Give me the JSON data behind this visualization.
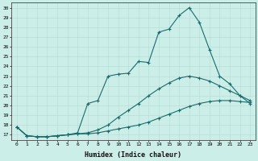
{
  "xlabel": "Humidex (Indice chaleur)",
  "bg_color": "#cceee8",
  "line_color": "#1a6b6b",
  "grid_color": "#b8ddd8",
  "xlim": [
    -0.5,
    23.5
  ],
  "ylim": [
    16.5,
    30.5
  ],
  "xticks": [
    0,
    1,
    2,
    3,
    4,
    5,
    6,
    7,
    8,
    9,
    10,
    11,
    12,
    13,
    14,
    15,
    16,
    17,
    18,
    19,
    20,
    21,
    22,
    23
  ],
  "yticks": [
    17,
    18,
    19,
    20,
    21,
    22,
    23,
    24,
    25,
    26,
    27,
    28,
    29,
    30
  ],
  "series": [
    [
      17.8,
      16.9,
      16.8,
      16.8,
      16.9,
      17.0,
      17.1,
      17.1,
      17.2,
      17.4,
      17.6,
      17.8,
      18.0,
      18.3,
      18.7,
      19.1,
      19.5,
      19.9,
      20.2,
      20.4,
      20.5,
      20.5,
      20.4,
      20.3
    ],
    [
      17.8,
      16.9,
      16.8,
      16.8,
      16.9,
      17.0,
      17.1,
      17.2,
      17.5,
      18.0,
      18.8,
      19.5,
      20.2,
      21.0,
      21.7,
      22.3,
      22.8,
      23.0,
      22.8,
      22.5,
      22.0,
      21.5,
      21.0,
      20.5
    ],
    [
      17.8,
      16.9,
      16.8,
      16.8,
      16.9,
      17.0,
      17.2,
      20.2,
      20.5,
      23.0,
      23.2,
      23.3,
      24.5,
      24.4,
      27.5,
      27.8,
      29.2,
      30.0,
      28.5,
      25.7,
      23.0,
      22.2,
      21.0,
      20.2
    ]
  ]
}
